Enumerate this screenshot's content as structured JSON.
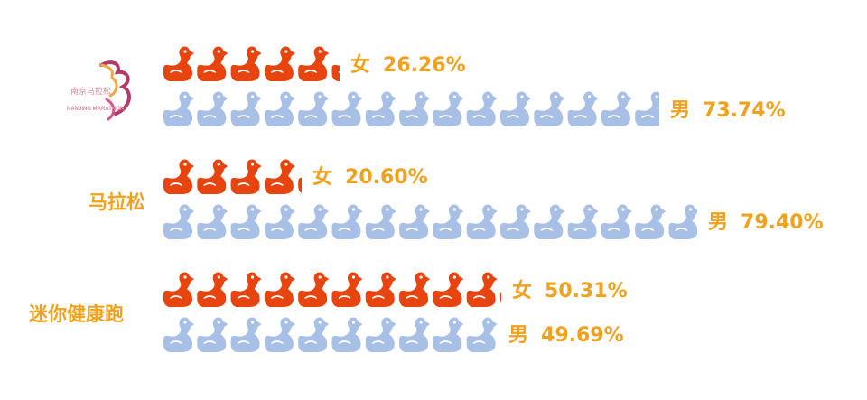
{
  "colors": {
    "female": "#e8440f",
    "male": "#a8c0e6",
    "label": "#f0a21f"
  },
  "logo": {
    "text_cn": "南京马拉松",
    "text_en": "NANJING MARATHON"
  },
  "chart_data": {
    "type": "bar",
    "icon": "duck-icon",
    "unit_value_percent": 5,
    "categories": [
      "南京马拉松",
      "马拉松",
      "迷你健康跑"
    ],
    "category_labels": [
      "",
      "马拉松",
      "迷你健康跑"
    ],
    "series": [
      {
        "name": "女",
        "values": [
          26.26,
          20.6,
          50.31
        ]
      },
      {
        "name": "男",
        "values": [
          73.74,
          79.4,
          49.69
        ]
      }
    ],
    "value_labels": {
      "女": [
        "26.26%",
        "20.60%",
        "50.31%"
      ],
      "男": [
        "73.74%",
        "79.40%",
        "49.69%"
      ]
    }
  }
}
